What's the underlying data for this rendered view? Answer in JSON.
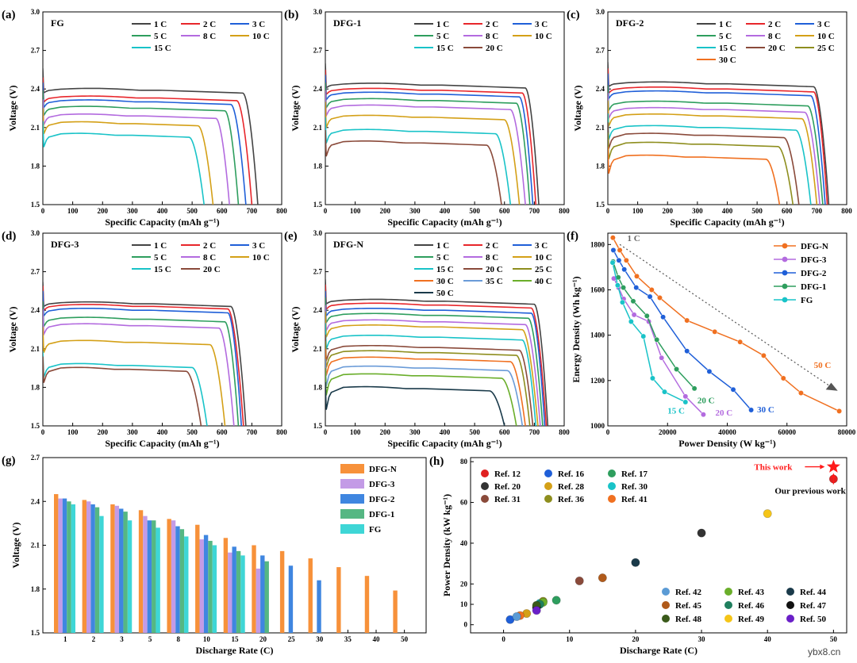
{
  "figure": {
    "watermark": "ybx8.cn"
  },
  "chart_data": [
    {
      "id": "a",
      "panel_label": "(a)",
      "sample": "FG",
      "type": "line",
      "xlabel": "Specific Capacity (mAh g⁻¹)",
      "ylabel": "Voltage (V)",
      "xlim": [
        0,
        800
      ],
      "ylim": [
        1.5,
        3.0
      ],
      "xticks": [
        0,
        100,
        200,
        300,
        400,
        500,
        600,
        700,
        800
      ],
      "yticks": [
        1.5,
        1.8,
        2.1,
        2.4,
        2.7,
        3.0
      ],
      "legend_columns": 3,
      "series": [
        {
          "name": "1 C",
          "color": "#444444",
          "plateau": 2.39,
          "capacity": 720
        },
        {
          "name": "2 C",
          "color": "#e8262b",
          "plateau": 2.33,
          "capacity": 700
        },
        {
          "name": "3 C",
          "color": "#1f5fd8",
          "plateau": 2.3,
          "capacity": 680
        },
        {
          "name": "5 C",
          "color": "#2e9e5e",
          "plateau": 2.25,
          "capacity": 655
        },
        {
          "name": "8 C",
          "color": "#b36bdf",
          "plateau": 2.19,
          "capacity": 625
        },
        {
          "name": "10 C",
          "color": "#d4a017",
          "plateau": 2.13,
          "capacity": 570
        },
        {
          "name": "15 C",
          "color": "#19c3c8",
          "plateau": 2.04,
          "capacity": 540
        }
      ]
    },
    {
      "id": "b",
      "panel_label": "(b)",
      "sample": "DFG-1",
      "type": "line",
      "xlabel": "Specific Capacity (mAh g⁻¹)",
      "ylabel": "Voltage (V)",
      "xlim": [
        0,
        800
      ],
      "ylim": [
        1.5,
        3.0
      ],
      "xticks": [
        0,
        100,
        200,
        300,
        400,
        500,
        600,
        700,
        800
      ],
      "yticks": [
        1.5,
        1.8,
        2.1,
        2.4,
        2.7,
        3.0
      ],
      "legend_columns": 3,
      "series": [
        {
          "name": "1 C",
          "color": "#444444",
          "plateau": 2.43,
          "capacity": 715
        },
        {
          "name": "2 C",
          "color": "#e8262b",
          "plateau": 2.39,
          "capacity": 705
        },
        {
          "name": "3 C",
          "color": "#1f5fd8",
          "plateau": 2.36,
          "capacity": 695
        },
        {
          "name": "5 C",
          "color": "#2e9e5e",
          "plateau": 2.31,
          "capacity": 685
        },
        {
          "name": "8 C",
          "color": "#b36bdf",
          "plateau": 2.26,
          "capacity": 670
        },
        {
          "name": "10 C",
          "color": "#d4a017",
          "plateau": 2.18,
          "capacity": 650
        },
        {
          "name": "15 C",
          "color": "#19c3c8",
          "plateau": 2.07,
          "capacity": 620
        },
        {
          "name": "20 C",
          "color": "#8a4a3a",
          "plateau": 1.98,
          "capacity": 590
        }
      ]
    },
    {
      "id": "c",
      "panel_label": "(c)",
      "sample": "DFG-2",
      "type": "line",
      "xlabel": "Specific Capacity (mAh g⁻¹)",
      "ylabel": "Voltage (V)",
      "xlim": [
        0,
        800
      ],
      "ylim": [
        1.5,
        3.0
      ],
      "xticks": [
        0,
        100,
        200,
        300,
        400,
        500,
        600,
        700,
        800
      ],
      "yticks": [
        1.5,
        1.8,
        2.1,
        2.4,
        2.7,
        3.0
      ],
      "legend_columns": 3,
      "series": [
        {
          "name": "1 C",
          "color": "#444444",
          "plateau": 2.44,
          "capacity": 740
        },
        {
          "name": "2 C",
          "color": "#e8262b",
          "plateau": 2.4,
          "capacity": 735
        },
        {
          "name": "3 C",
          "color": "#1f5fd8",
          "plateau": 2.37,
          "capacity": 728
        },
        {
          "name": "5 C",
          "color": "#2e9e5e",
          "plateau": 2.29,
          "capacity": 720
        },
        {
          "name": "8 C",
          "color": "#b36bdf",
          "plateau": 2.24,
          "capacity": 710
        },
        {
          "name": "10 C",
          "color": "#d4a017",
          "plateau": 2.19,
          "capacity": 700
        },
        {
          "name": "15 C",
          "color": "#19c3c8",
          "plateau": 2.1,
          "capacity": 680
        },
        {
          "name": "20 C",
          "color": "#8a4a3a",
          "plateau": 2.04,
          "capacity": 640
        },
        {
          "name": "25 C",
          "color": "#8e8e1e",
          "plateau": 1.97,
          "capacity": 620
        },
        {
          "name": "30 C",
          "color": "#f07020",
          "plateau": 1.87,
          "capacity": 575
        }
      ]
    },
    {
      "id": "d",
      "panel_label": "(d)",
      "sample": "DFG-3",
      "type": "line",
      "xlabel": "Specific Capacity (mAh g⁻¹)",
      "ylabel": "Voltage (V)",
      "xlim": [
        0,
        800
      ],
      "ylim": [
        1.5,
        3.0
      ],
      "xticks": [
        0,
        100,
        200,
        300,
        400,
        500,
        600,
        700,
        800
      ],
      "yticks": [
        1.5,
        1.8,
        2.1,
        2.4,
        2.7,
        3.0
      ],
      "legend_columns": 3,
      "series": [
        {
          "name": "1 C",
          "color": "#444444",
          "plateau": 2.45,
          "capacity": 680
        },
        {
          "name": "2 C",
          "color": "#e8262b",
          "plateau": 2.43,
          "capacity": 672
        },
        {
          "name": "3 C",
          "color": "#1f5fd8",
          "plateau": 2.4,
          "capacity": 665
        },
        {
          "name": "5 C",
          "color": "#2e9e5e",
          "plateau": 2.33,
          "capacity": 655
        },
        {
          "name": "8 C",
          "color": "#b36bdf",
          "plateau": 2.28,
          "capacity": 640
        },
        {
          "name": "10 C",
          "color": "#d4a017",
          "plateau": 2.15,
          "capacity": 610
        },
        {
          "name": "15 C",
          "color": "#19c3c8",
          "plateau": 1.97,
          "capacity": 550
        },
        {
          "name": "20 C",
          "color": "#8a4a3a",
          "plateau": 1.94,
          "capacity": 530
        }
      ]
    },
    {
      "id": "e",
      "panel_label": "(e)",
      "sample": "DFG-N",
      "type": "line",
      "xlabel": "Specific Capacity (mAh g⁻¹)",
      "ylabel": "Voltage (V)",
      "xlim": [
        0,
        800
      ],
      "ylim": [
        1.5,
        3.0
      ],
      "xticks": [
        0,
        100,
        200,
        300,
        400,
        500,
        600,
        700,
        800
      ],
      "yticks": [
        1.5,
        1.8,
        2.1,
        2.4,
        2.7,
        3.0
      ],
      "legend_columns": 3,
      "series": [
        {
          "name": "1 C",
          "color": "#444444",
          "plateau": 2.47,
          "capacity": 745
        },
        {
          "name": "2 C",
          "color": "#e8262b",
          "plateau": 2.44,
          "capacity": 740
        },
        {
          "name": "3 C",
          "color": "#1f5fd8",
          "plateau": 2.4,
          "capacity": 735
        },
        {
          "name": "5 C",
          "color": "#2e9e5e",
          "plateau": 2.36,
          "capacity": 728
        },
        {
          "name": "8 C",
          "color": "#b36bdf",
          "plateau": 2.31,
          "capacity": 720
        },
        {
          "name": "10 C",
          "color": "#d4a017",
          "plateau": 2.27,
          "capacity": 712
        },
        {
          "name": "15 C",
          "color": "#19c3c8",
          "plateau": 2.19,
          "capacity": 705
        },
        {
          "name": "20 C",
          "color": "#8a4a3a",
          "plateau": 2.11,
          "capacity": 695
        },
        {
          "name": "25 C",
          "color": "#8e8e1e",
          "plateau": 2.07,
          "capacity": 685
        },
        {
          "name": "30 C",
          "color": "#f07020",
          "plateau": 2.02,
          "capacity": 670
        },
        {
          "name": "35 C",
          "color": "#6a9bd8",
          "plateau": 1.95,
          "capacity": 660
        },
        {
          "name": "40 C",
          "color": "#6aae2a",
          "plateau": 1.89,
          "capacity": 640
        },
        {
          "name": "50 C",
          "color": "#1a3a4a",
          "plateau": 1.79,
          "capacity": 600
        }
      ]
    },
    {
      "id": "f",
      "panel_label": "(f)",
      "type": "line",
      "xlabel": "Power Density (W kg⁻¹)",
      "ylabel": "Energy Density (Wh kg⁻¹)",
      "xlim": [
        0,
        80000
      ],
      "ylim": [
        1000,
        1850
      ],
      "xticks": [
        0,
        20000,
        40000,
        60000,
        80000
      ],
      "yticks": [
        1000,
        1200,
        1400,
        1600,
        1800
      ],
      "annotations": [
        {
          "text": "1 C",
          "color": "#666666"
        },
        {
          "text": "50 C",
          "color": "#f07020"
        },
        {
          "text": "30 C",
          "color": "#1f5fd8"
        },
        {
          "text": "20 C",
          "color": "#2e9e5e"
        },
        {
          "text": "20 C",
          "color": "#b36bdf"
        },
        {
          "text": "15 C",
          "color": "#19c3c8"
        }
      ],
      "series": [
        {
          "name": "DFG-N",
          "color": "#f07020",
          "x": [
            1700,
            4000,
            6200,
            9700,
            14700,
            17400,
            26500,
            35800,
            44300,
            52200,
            58800,
            64700,
            77500
          ],
          "y": [
            1830,
            1775,
            1730,
            1660,
            1600,
            1565,
            1465,
            1415,
            1370,
            1310,
            1210,
            1145,
            1065
          ]
        },
        {
          "name": "DFG-3",
          "color": "#b36bdf",
          "x": [
            2000,
            3600,
            5300,
            8800,
            13700,
            18000,
            26000,
            32000
          ],
          "y": [
            1650,
            1610,
            1560,
            1490,
            1460,
            1300,
            1130,
            1050
          ]
        },
        {
          "name": "DFG-2",
          "color": "#1f5fd8",
          "x": [
            1850,
            3700,
            5500,
            9500,
            14100,
            18500,
            26500,
            34000,
            42000,
            48000
          ],
          "y": [
            1775,
            1730,
            1690,
            1610,
            1570,
            1480,
            1330,
            1240,
            1160,
            1070
          ]
        },
        {
          "name": "DFG-1",
          "color": "#2e9e5e",
          "x": [
            1750,
            3500,
            5200,
            8500,
            13100,
            16400,
            23000,
            29000
          ],
          "y": [
            1725,
            1655,
            1610,
            1550,
            1485,
            1380,
            1250,
            1165
          ]
        },
        {
          "name": "FG",
          "color": "#19c3c8",
          "x": [
            1600,
            3300,
            4900,
            7800,
            11900,
            15000,
            19000,
            26000
          ],
          "y": [
            1720,
            1620,
            1545,
            1460,
            1395,
            1210,
            1150,
            1105
          ]
        }
      ]
    },
    {
      "id": "g",
      "panel_label": "(g)",
      "type": "bar",
      "xlabel": "Discharge Rate (C)",
      "ylabel": "Voltage (V)",
      "ylim": [
        1.5,
        2.7
      ],
      "yticks": [
        1.5,
        1.8,
        2.1,
        2.4,
        2.7
      ],
      "categories": [
        "1",
        "2",
        "3",
        "5",
        "8",
        "10",
        "15",
        "20",
        "25",
        "30",
        "35",
        "40",
        "50"
      ],
      "series": [
        {
          "name": "DFG-N",
          "color": "#f7913a",
          "values": [
            2.45,
            2.41,
            2.38,
            2.34,
            2.28,
            2.24,
            2.15,
            2.1,
            2.06,
            2.01,
            1.95,
            1.89,
            1.79
          ]
        },
        {
          "name": "DFG-3",
          "color": "#c39be6",
          "values": [
            2.42,
            2.4,
            2.37,
            2.3,
            2.27,
            2.14,
            2.05,
            1.94,
            null,
            null,
            null,
            null,
            null
          ]
        },
        {
          "name": "DFG-2",
          "color": "#3f86e0",
          "values": [
            2.42,
            2.38,
            2.35,
            2.27,
            2.23,
            2.17,
            2.09,
            2.03,
            1.96,
            1.86,
            null,
            null,
            null
          ]
        },
        {
          "name": "DFG-1",
          "color": "#55b783",
          "values": [
            2.4,
            2.36,
            2.33,
            2.27,
            2.21,
            2.13,
            2.06,
            1.99,
            null,
            null,
            null,
            null,
            null
          ]
        },
        {
          "name": "FG",
          "color": "#3ed6d6",
          "values": [
            2.38,
            2.3,
            2.27,
            2.22,
            2.16,
            2.1,
            2.03,
            null,
            null,
            null,
            null,
            null,
            null
          ]
        }
      ]
    },
    {
      "id": "h",
      "panel_label": "(h)",
      "type": "scatter",
      "xlabel": "Discharge Rate (C)",
      "ylabel": "Power Density (kW kg⁻¹)",
      "xlim": [
        -5,
        52
      ],
      "ylim": [
        -4,
        82
      ],
      "xticks": [
        0,
        10,
        20,
        30,
        40,
        50
      ],
      "yticks": [
        0,
        10,
        20,
        40,
        60,
        80
      ],
      "annotations": {
        "this_work": "This work",
        "previous_work": "Our previous work"
      },
      "this_work": {
        "x": 50,
        "y": 77.5,
        "color": "#ff1a1a"
      },
      "points": [
        {
          "name": "Ref. 12",
          "color": "#e02020",
          "x": 50,
          "y": 71.5
        },
        {
          "name": "Ref. 16",
          "color": "#1f5fd8",
          "x": 1,
          "y": 2.5
        },
        {
          "name": "Ref. 17",
          "color": "#2e9e5e",
          "x": 8,
          "y": 12
        },
        {
          "name": "Ref. 20",
          "color": "#333333",
          "x": 30,
          "y": 45
        },
        {
          "name": "Ref. 28",
          "color": "#d4a017",
          "x": 3.5,
          "y": 5.5
        },
        {
          "name": "Ref. 30",
          "color": "#19c3c8",
          "x": 5.5,
          "y": 10.5
        },
        {
          "name": "Ref. 31",
          "color": "#8a4a3a",
          "x": 11.5,
          "y": 21.5
        },
        {
          "name": "Ref. 36",
          "color": "#8e8e1e",
          "x": 6,
          "y": 11.5
        },
        {
          "name": "Ref. 41",
          "color": "#f07020",
          "x": 2.5,
          "y": 4.5
        },
        {
          "name": "Ref. 42",
          "color": "#5b9bd5",
          "x": 2,
          "y": 4
        },
        {
          "name": "Ref. 43",
          "color": "#6aae2a",
          "x": 6,
          "y": 11
        },
        {
          "name": "Ref. 44",
          "color": "#1a3a4a",
          "x": 20,
          "y": 30.5
        },
        {
          "name": "Ref. 45",
          "color": "#b05a1a",
          "x": 15,
          "y": 23
        },
        {
          "name": "Ref. 46",
          "color": "#1f7f5e",
          "x": 5.5,
          "y": 10
        },
        {
          "name": "Ref. 47",
          "color": "#111111",
          "x": 5,
          "y": 8.5
        },
        {
          "name": "Ref. 48",
          "color": "#3a5a1a",
          "x": 5,
          "y": 9.5
        },
        {
          "name": "Ref. 49",
          "color": "#f5c518",
          "x": 40,
          "y": 54.5
        },
        {
          "name": "Ref. 50",
          "color": "#6a1fc8",
          "x": 5,
          "y": 7
        }
      ]
    }
  ]
}
